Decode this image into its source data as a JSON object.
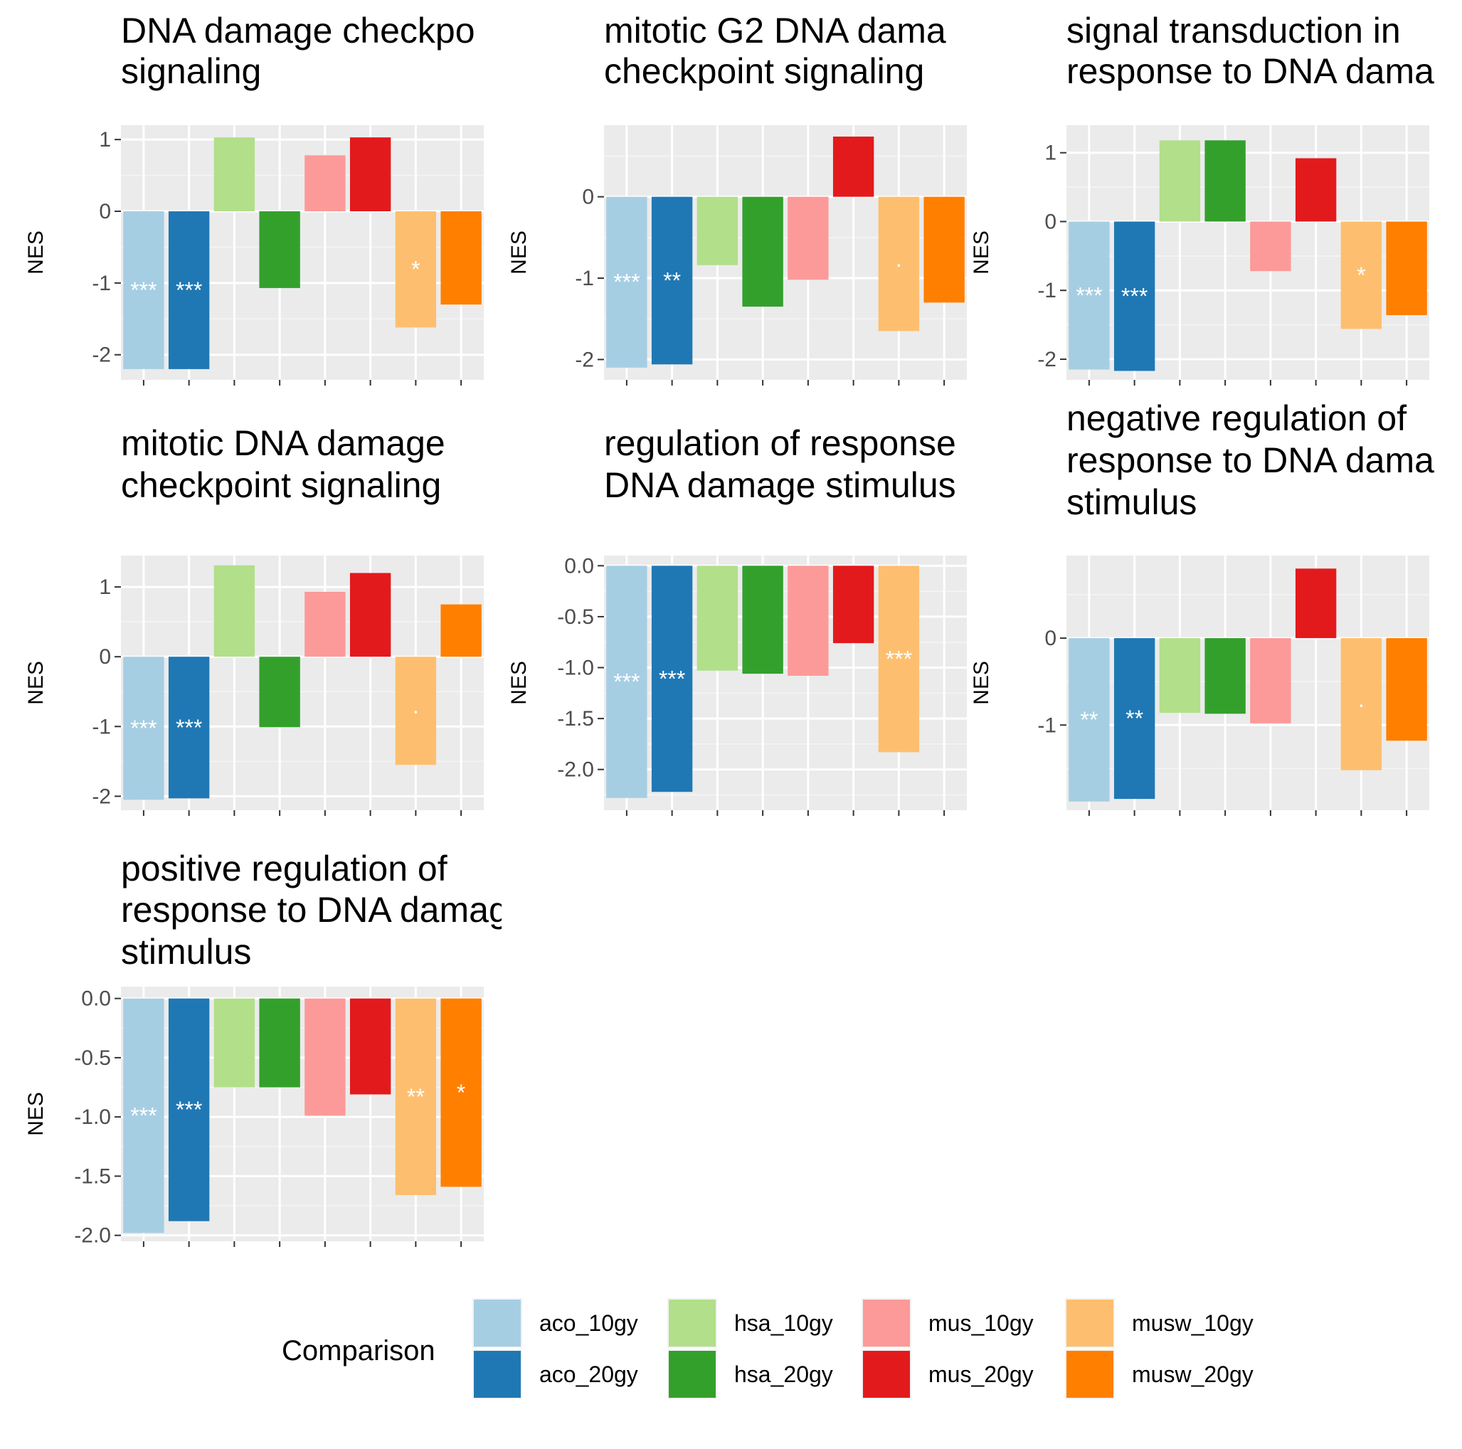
{
  "chart_data": {
    "type": "bar",
    "legend": {
      "title": "Comparison",
      "placement": "bottom",
      "entries": [
        {
          "name": "aco_10gy",
          "color": "#A6CEE3"
        },
        {
          "name": "aco_20gy",
          "color": "#1F78B4"
        },
        {
          "name": "hsa_10gy",
          "color": "#B2DF8A"
        },
        {
          "name": "hsa_20gy",
          "color": "#33A02C"
        },
        {
          "name": "mus_10gy",
          "color": "#FB9A99"
        },
        {
          "name": "mus_20gy",
          "color": "#E31A1C"
        },
        {
          "name": "musw_10gy",
          "color": "#FDBF6F"
        },
        {
          "name": "musw_20gy",
          "color": "#FF7F00"
        }
      ]
    },
    "ylabel": "NES",
    "grid": true,
    "panels": [
      {
        "title_lines": [
          "DNA damage checkpo",
          "signaling"
        ],
        "ylim": [
          -2.35,
          1.2
        ],
        "yticks": [
          -2,
          -1,
          0,
          1
        ],
        "tick_labels": [
          "-2",
          "-1",
          "0",
          "1"
        ],
        "values": [
          -2.2,
          -2.2,
          1.03,
          -1.07,
          0.78,
          1.03,
          -1.62,
          -1.3
        ],
        "sig": [
          "***",
          "***",
          "",
          "",
          "",
          "",
          "*",
          ""
        ]
      },
      {
        "title_lines": [
          "mitotic G2 DNA dama",
          "checkpoint signaling"
        ],
        "ylim": [
          -2.25,
          0.88
        ],
        "yticks": [
          -2,
          -1,
          0
        ],
        "tick_labels": [
          "-2",
          "-1",
          "0"
        ],
        "values": [
          -2.1,
          -2.06,
          -0.84,
          -1.35,
          -1.02,
          0.74,
          -1.65,
          -1.3
        ],
        "sig": [
          "***",
          "**",
          "",
          "",
          "",
          "",
          "·",
          ""
        ]
      },
      {
        "title_lines": [
          "signal transduction in",
          "response to DNA dama"
        ],
        "ylim": [
          -2.3,
          1.4
        ],
        "yticks": [
          -2,
          -1,
          0,
          1
        ],
        "tick_labels": [
          "-2",
          "-1",
          "0",
          "1"
        ],
        "values": [
          -2.15,
          -2.17,
          1.18,
          1.18,
          -0.72,
          0.92,
          -1.56,
          -1.36
        ],
        "sig": [
          "***",
          "***",
          "",
          "",
          "",
          "",
          "*",
          ""
        ]
      },
      {
        "title_lines": [
          "mitotic DNA damage",
          "checkpoint signaling"
        ],
        "ylim": [
          -2.2,
          1.45
        ],
        "yticks": [
          -2,
          -1,
          0,
          1
        ],
        "tick_labels": [
          "-2",
          "-1",
          "0",
          "1"
        ],
        "values": [
          -2.05,
          -2.03,
          1.31,
          -1.01,
          0.93,
          1.2,
          -1.55,
          0.75
        ],
        "sig": [
          "***",
          "***",
          "",
          "",
          "",
          "",
          "·",
          ""
        ]
      },
      {
        "title_lines": [
          "regulation of response",
          "DNA damage stimulus"
        ],
        "ylim": [
          -2.4,
          0.1
        ],
        "yticks": [
          -2.0,
          -1.5,
          -1.0,
          -0.5,
          0.0
        ],
        "tick_labels": [
          "-2.0",
          "-1.5",
          "-1.0",
          "-0.5",
          "0.0"
        ],
        "values": [
          -2.28,
          -2.22,
          -1.03,
          -1.06,
          -1.08,
          -0.76,
          -1.83,
          null
        ],
        "sig": [
          "***",
          "***",
          "",
          "",
          "",
          "",
          "***",
          ""
        ]
      },
      {
        "title_lines": [
          "negative regulation of",
          "response to DNA dama",
          "stimulus"
        ],
        "ylim": [
          -1.98,
          0.95
        ],
        "yticks": [
          -1,
          0
        ],
        "tick_labels": [
          "-1",
          "0"
        ],
        "values": [
          -1.88,
          -1.85,
          -0.86,
          -0.87,
          -0.98,
          0.8,
          -1.52,
          -1.18
        ],
        "sig": [
          "**",
          "**",
          "",
          "",
          "",
          "",
          "·",
          ""
        ]
      },
      {
        "title_lines": [
          "positive regulation of",
          "response to DNA damage",
          "stimulus"
        ],
        "ylim": [
          -2.05,
          0.1
        ],
        "yticks": [
          -2.0,
          -1.5,
          -1.0,
          -0.5,
          0.0
        ],
        "tick_labels": [
          "-2.0",
          "-1.5",
          "-1.0",
          "-0.5",
          "0.0"
        ],
        "values": [
          -1.98,
          -1.88,
          -0.75,
          -0.75,
          -0.99,
          -0.81,
          -1.66,
          -1.59
        ],
        "sig": [
          "***",
          "***",
          "",
          "",
          "",
          "",
          "**",
          "*"
        ]
      }
    ]
  }
}
